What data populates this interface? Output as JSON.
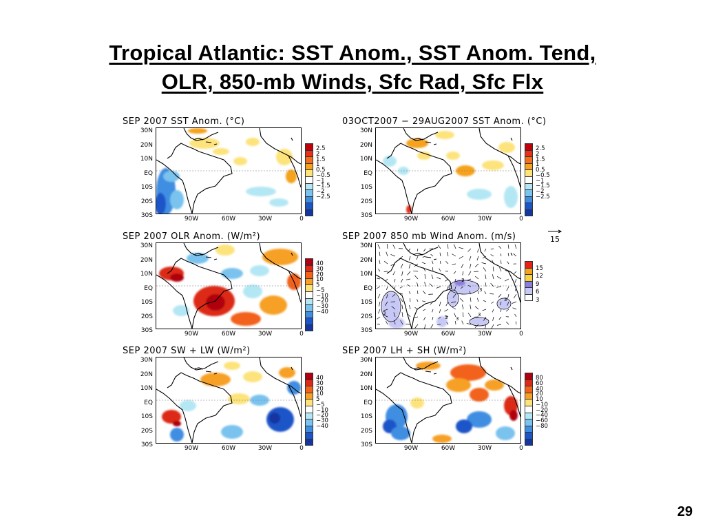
{
  "title": {
    "line1": "Tropical Atlantic: SST Anom., SST Anom. Tend,",
    "line2": "OLR, 850-mb Winds, Sfc Rad, Sfc Flx"
  },
  "axes": {
    "lat_labels": [
      "30N",
      "20N",
      "10N",
      "EQ",
      "10S",
      "20S",
      "30S"
    ],
    "lon_labels": [
      "90W",
      "60W",
      "30W",
      "0"
    ]
  },
  "panels": [
    {
      "id": "sst",
      "title": "SEP  2007  SST  Anom.  (°C)",
      "colorbar": {
        "labels": [
          "2.5",
          "2",
          "1.5",
          "1",
          "0.5",
          "−0.5",
          "−1",
          "−1.5",
          "−2",
          "−2.5"
        ],
        "colors": [
          "#c0000b",
          "#e8301a",
          "#f56f18",
          "#f5a21e",
          "#fde37b",
          "#ffffff",
          "#b4e7f4",
          "#7ac3ee",
          "#3f8ee2",
          "#1c55c8",
          "#1336a0"
        ]
      }
    },
    {
      "id": "sst-tend",
      "title": "03OCT2007 − 29AUG2007  SST  Anom.  (°C)",
      "colorbar": {
        "labels": [
          "2.5",
          "2",
          "1.5",
          "1",
          "0.5",
          "−0.5",
          "−1",
          "−1.5",
          "−2",
          "−2.5"
        ],
        "colors": [
          "#c0000b",
          "#e8301a",
          "#f56f18",
          "#f5a21e",
          "#fde37b",
          "#ffffff",
          "#b4e7f4",
          "#7ac3ee",
          "#3f8ee2",
          "#1c55c8",
          "#1336a0"
        ]
      }
    },
    {
      "id": "olr",
      "title": "SEP  2007  OLR  Anom.  (W/m²)",
      "colorbar": {
        "labels": [
          "40",
          "30",
          "20",
          "10",
          "5",
          "−5",
          "−10",
          "−20",
          "−30",
          "−40"
        ],
        "colors": [
          "#b00010",
          "#dc2a18",
          "#f2621a",
          "#f7a025",
          "#fde37b",
          "#ffffff",
          "#b4e7f4",
          "#7ac3ee",
          "#3f8ee2",
          "#1c55c8",
          "#1336a0"
        ]
      }
    },
    {
      "id": "wind",
      "title": "SEP  2007  850  mb  Wind  Anom.  (m/s)",
      "vector_reference": "15",
      "contour_labels": [
        "3",
        "3",
        "3",
        "3",
        "3",
        "3",
        "3"
      ],
      "colorbar": {
        "labels": [
          "15",
          "12",
          "9",
          "6",
          "3"
        ],
        "colors": [
          "#e8201a",
          "#f5a21e",
          "#f8d240",
          "#8a7de0",
          "#c8c8f6",
          "#ffffff"
        ]
      }
    },
    {
      "id": "rad",
      "title": "SEP  2007  SW  +  LW  (W/m²)",
      "colorbar": {
        "labels": [
          "40",
          "30",
          "20",
          "10",
          "5",
          "−5",
          "−10",
          "−20",
          "−30",
          "−40"
        ],
        "colors": [
          "#b00010",
          "#dc2a18",
          "#f2621a",
          "#f7a025",
          "#fde37b",
          "#ffffff",
          "#b4e7f4",
          "#7ac3ee",
          "#3f8ee2",
          "#1c55c8",
          "#1336a0"
        ]
      }
    },
    {
      "id": "flx",
      "title": "SEP  2007  LH  +  SH  (W/m²)",
      "colorbar": {
        "labels": [
          "80",
          "60",
          "40",
          "20",
          "10",
          "−10",
          "−20",
          "−40",
          "−60",
          "−80"
        ],
        "colors": [
          "#b00010",
          "#dc2a18",
          "#f2621a",
          "#f7a025",
          "#fde37b",
          "#ffffff",
          "#b4e7f4",
          "#7ac3ee",
          "#3f8ee2",
          "#1c55c8",
          "#1336a0"
        ]
      }
    }
  ],
  "page_number": "29"
}
